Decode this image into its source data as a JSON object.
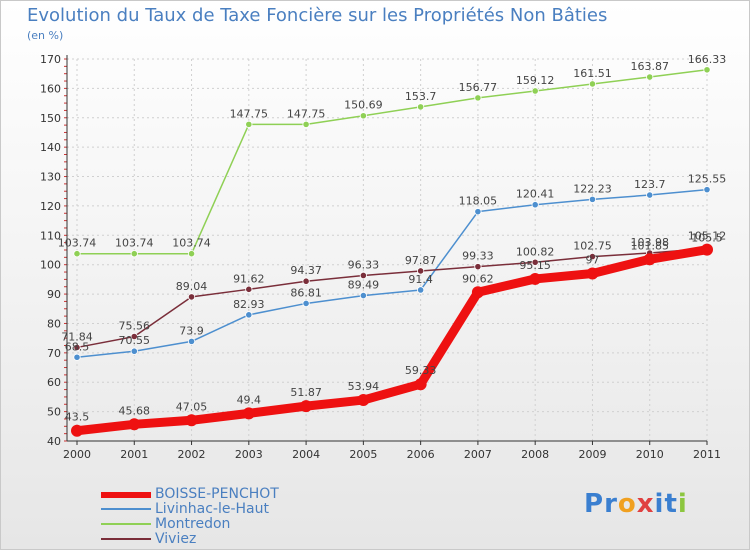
{
  "title": "Evolution du Taux de Taxe Foncière sur les Propriétés Non Bâties",
  "subtitle": "(en %)",
  "logo": {
    "text": "Proxiti",
    "letters": [
      "P",
      "r",
      "o",
      "x",
      "i",
      "t",
      "i"
    ]
  },
  "chart_data": {
    "type": "line",
    "categories": [
      "2000",
      "2001",
      "2002",
      "2003",
      "2004",
      "2005",
      "2006",
      "2007",
      "2008",
      "2009",
      "2010",
      "2011"
    ],
    "ylim": [
      40,
      170
    ],
    "yticks": [
      40,
      50,
      60,
      70,
      80,
      90,
      100,
      110,
      120,
      130,
      140,
      150,
      160,
      170
    ],
    "grid": true,
    "series": [
      {
        "name": "BOISSE-PENCHOT",
        "color": "#ee1111",
        "values": [
          43.5,
          45.68,
          47.05,
          49.4,
          51.87,
          53.94,
          59.33,
          90.62,
          95.15,
          97,
          101.85,
          105.12
        ]
      },
      {
        "name": "Livinhac-le-Haut",
        "color": "#4d8fcf",
        "values": [
          68.5,
          70.55,
          73.9,
          82.93,
          86.81,
          89.49,
          91.4,
          118.05,
          120.41,
          122.23,
          123.7,
          125.55
        ]
      },
      {
        "name": "Montredon",
        "color": "#8fd055",
        "values": [
          103.74,
          103.74,
          103.74,
          147.75,
          147.75,
          150.69,
          153.7,
          156.77,
          159.12,
          161.51,
          163.87,
          166.33
        ]
      },
      {
        "name": "Viviez",
        "color": "#7a2e3a",
        "values": [
          71.84,
          75.56,
          89.04,
          91.62,
          94.37,
          96.33,
          97.87,
          99.33,
          100.82,
          102.75,
          103.98,
          105.5
        ]
      }
    ],
    "data_labels": [
      [
        "43.5",
        "45.68",
        "47.05",
        "49.4",
        "51.87",
        "53.94",
        "59.33",
        "90.62",
        "95.15",
        "97",
        "101.85",
        "105.12"
      ],
      [
        "68.5",
        "70.55",
        "73.9",
        "82.93",
        "86.81",
        "89.49",
        "91.4",
        "118.05",
        "120.41",
        "122.23",
        "123.7",
        "125.55"
      ],
      [
        "103.74",
        "103.74",
        "103.74",
        "147.75",
        "147.75",
        "150.69",
        "153.7",
        "156.77",
        "159.12",
        "161.51",
        "163.87",
        "166.33"
      ],
      [
        "71.84",
        "75.56",
        "89.04",
        "91.62",
        "94.37",
        "96.33",
        "97.87",
        "99.33",
        "100.82",
        "102.75",
        "103.98",
        "105.5"
      ]
    ]
  },
  "colors": {
    "title": "#4a7fc0",
    "axis": "#333333",
    "grid": "#d0d0d0",
    "tick_label": "#333333",
    "logo": [
      "#3a7fd0",
      "#3a7fd0",
      "#f0a020",
      "#e04040",
      "#3a7fd0",
      "#3a7fd0",
      "#8cc63f"
    ]
  }
}
